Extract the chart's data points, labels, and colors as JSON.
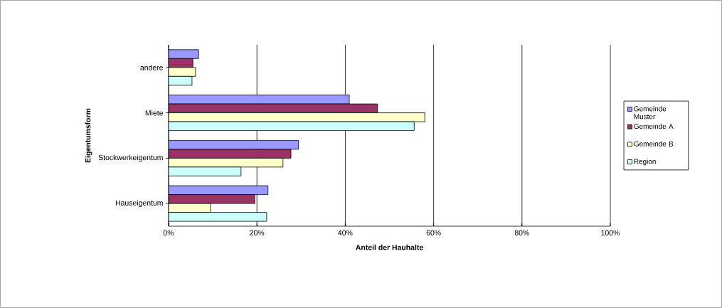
{
  "chart_data": {
    "type": "bar",
    "orientation": "horizontal",
    "xlabel": "Anteil der Hauhalte",
    "ylabel": "Eigentumsform",
    "categories": [
      "andere",
      "Miete",
      "Stockwerkeigentum",
      "Hauseigentum"
    ],
    "series": [
      {
        "name": "Gemeinde Muster",
        "color": "#9999ff",
        "values": [
          6.8,
          40.9,
          29.4,
          22.5
        ]
      },
      {
        "name": "Gemeinde A",
        "color": "#993366",
        "values": [
          5.5,
          47.3,
          27.7,
          19.5
        ]
      },
      {
        "name": "Gemeinde B",
        "color": "#ffffcc",
        "values": [
          6.1,
          58.0,
          25.9,
          9.5
        ]
      },
      {
        "name": "Region",
        "color": "#ccffff",
        "values": [
          5.3,
          55.6,
          16.4,
          22.2
        ]
      }
    ],
    "xlim": [
      0,
      100
    ],
    "xticks": [
      {
        "value": 0,
        "label": "0%"
      },
      {
        "value": 20,
        "label": "20%"
      },
      {
        "value": 40,
        "label": "40%"
      },
      {
        "value": 60,
        "label": "60%"
      },
      {
        "value": 80,
        "label": "80%"
      },
      {
        "value": 100,
        "label": "100%"
      }
    ],
    "grid": "x",
    "legend": "right"
  }
}
